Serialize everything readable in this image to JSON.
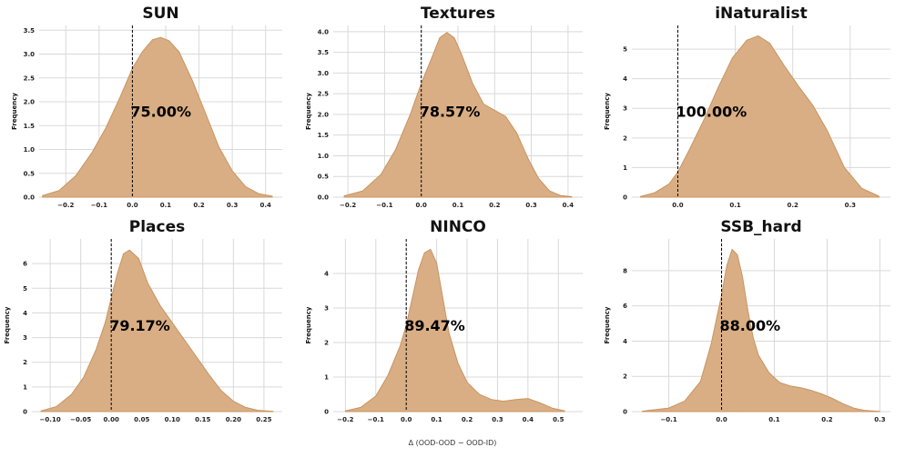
{
  "figure": {
    "xlabel": "Δ (OOD-OOD − OOD-ID)",
    "ylabel": "Frequency"
  },
  "chart_data": [
    {
      "type": "area",
      "title": "SUN",
      "ylabel": "Frequency",
      "annotation": "75.00%",
      "xlim": [
        -0.28,
        0.45
      ],
      "ylim": [
        0,
        3.6
      ],
      "xticks": [
        -0.2,
        -0.1,
        0.0,
        0.1,
        0.2,
        0.3,
        0.4
      ],
      "xtick_labels": [
        "−0.2",
        "−0.1",
        "0.0",
        "0.1",
        "0.2",
        "0.3",
        "0.4"
      ],
      "yticks": [
        0,
        0.5,
        1.0,
        1.5,
        2.0,
        2.5,
        3.0,
        3.5
      ],
      "ytick_labels": [
        "0.0",
        "0.5",
        "1.0",
        "1.5",
        "2.0",
        "2.5",
        "3.0",
        "3.5"
      ],
      "reference_line_x": 0,
      "x": [
        -0.27,
        -0.22,
        -0.17,
        -0.12,
        -0.08,
        -0.04,
        0.0,
        0.03,
        0.06,
        0.085,
        0.11,
        0.14,
        0.18,
        0.22,
        0.26,
        0.3,
        0.34,
        0.38,
        0.42
      ],
      "values": [
        0.03,
        0.14,
        0.45,
        0.95,
        1.45,
        2.05,
        2.7,
        3.05,
        3.3,
        3.35,
        3.28,
        3.05,
        2.45,
        1.75,
        1.05,
        0.55,
        0.22,
        0.07,
        0.02
      ]
    },
    {
      "type": "area",
      "title": "Textures",
      "ylabel": "Frequency",
      "annotation": "78.57%",
      "xlim": [
        -0.24,
        0.44
      ],
      "ylim": [
        0,
        4.15
      ],
      "xticks": [
        -0.2,
        -0.1,
        0.0,
        0.1,
        0.2,
        0.3,
        0.4
      ],
      "xtick_labels": [
        "−0.2",
        "−0.1",
        "0.0",
        "0.1",
        "0.2",
        "0.3",
        "0.4"
      ],
      "yticks": [
        0,
        0.5,
        1.0,
        1.5,
        2.0,
        2.5,
        3.0,
        3.5,
        4.0
      ],
      "ytick_labels": [
        "0.0",
        "0.5",
        "1.0",
        "1.5",
        "2.0",
        "2.5",
        "3.0",
        "3.5",
        "4.0"
      ],
      "reference_line_x": 0,
      "x": [
        -0.21,
        -0.16,
        -0.11,
        -0.07,
        -0.03,
        0.0,
        0.03,
        0.05,
        0.07,
        0.09,
        0.11,
        0.14,
        0.17,
        0.2,
        0.23,
        0.26,
        0.29,
        0.32,
        0.35,
        0.38,
        0.41
      ],
      "values": [
        0.03,
        0.15,
        0.55,
        1.15,
        2.0,
        2.75,
        3.4,
        3.85,
        3.98,
        3.85,
        3.45,
        2.75,
        2.25,
        2.1,
        1.95,
        1.55,
        0.95,
        0.45,
        0.15,
        0.04,
        0.01
      ]
    },
    {
      "type": "area",
      "title": "iNaturalist",
      "ylabel": "Frequency",
      "annotation": "100.00%",
      "xlim": [
        -0.08,
        0.37
      ],
      "ylim": [
        0,
        5.8
      ],
      "xticks": [
        0.0,
        0.1,
        0.2,
        0.3
      ],
      "xtick_labels": [
        "0.0",
        "0.1",
        "0.2",
        "0.3"
      ],
      "yticks": [
        0,
        1,
        2,
        3,
        4,
        5
      ],
      "ytick_labels": [
        "0",
        "1",
        "2",
        "3",
        "4",
        "5"
      ],
      "reference_line_x": 0,
      "x": [
        -0.065,
        -0.04,
        -0.015,
        0.0,
        0.02,
        0.045,
        0.07,
        0.095,
        0.12,
        0.14,
        0.16,
        0.185,
        0.21,
        0.235,
        0.26,
        0.29,
        0.32,
        0.35
      ],
      "values": [
        0.02,
        0.15,
        0.45,
        0.85,
        1.6,
        2.6,
        3.7,
        4.7,
        5.3,
        5.45,
        5.2,
        4.45,
        3.75,
        3.1,
        2.25,
        1.0,
        0.3,
        0.03
      ]
    },
    {
      "type": "area",
      "title": "Places",
      "ylabel": "Frequency",
      "annotation": "79.17%",
      "xlim": [
        -0.13,
        0.28
      ],
      "ylim": [
        0,
        7.0
      ],
      "xticks": [
        -0.1,
        -0.05,
        0.0,
        0.05,
        0.1,
        0.15,
        0.2,
        0.25
      ],
      "xtick_labels": [
        "−0.10",
        "−0.05",
        "0.00",
        "0.05",
        "0.10",
        "0.15",
        "0.20",
        "0.25"
      ],
      "yticks": [
        0,
        1,
        2,
        3,
        4,
        5,
        6
      ],
      "ytick_labels": [
        "0",
        "1",
        "2",
        "3",
        "4",
        "5",
        "6"
      ],
      "reference_line_x": 0,
      "x": [
        -0.115,
        -0.09,
        -0.065,
        -0.045,
        -0.025,
        -0.01,
        0.0,
        0.01,
        0.02,
        0.03,
        0.045,
        0.06,
        0.08,
        0.1,
        0.12,
        0.14,
        0.16,
        0.18,
        0.2,
        0.22,
        0.24,
        0.265
      ],
      "values": [
        0.03,
        0.2,
        0.7,
        1.4,
        2.5,
        3.6,
        4.6,
        5.6,
        6.4,
        6.55,
        6.2,
        5.2,
        4.3,
        3.6,
        2.9,
        2.2,
        1.5,
        0.85,
        0.42,
        0.17,
        0.05,
        0.01
      ]
    },
    {
      "type": "area",
      "title": "NINCO",
      "ylabel": "Frequency",
      "annotation": "89.47%",
      "xlim": [
        -0.24,
        0.58
      ],
      "ylim": [
        0,
        5.0
      ],
      "xticks": [
        -0.2,
        -0.1,
        0.0,
        0.1,
        0.2,
        0.3,
        0.4,
        0.5
      ],
      "xtick_labels": [
        "−0.2",
        "−0.1",
        "0.0",
        "0.1",
        "0.2",
        "0.3",
        "0.4",
        "0.5"
      ],
      "yticks": [
        0,
        1,
        2,
        3,
        4
      ],
      "ytick_labels": [
        "0",
        "1",
        "2",
        "3",
        "4"
      ],
      "reference_line_x": 0,
      "x": [
        -0.2,
        -0.15,
        -0.1,
        -0.06,
        -0.02,
        0.0,
        0.02,
        0.04,
        0.06,
        0.08,
        0.1,
        0.12,
        0.14,
        0.17,
        0.2,
        0.24,
        0.28,
        0.32,
        0.36,
        0.4,
        0.44,
        0.48,
        0.52
      ],
      "values": [
        0.02,
        0.12,
        0.45,
        1.05,
        1.9,
        2.5,
        3.3,
        4.1,
        4.6,
        4.7,
        4.3,
        3.3,
        2.3,
        1.4,
        0.85,
        0.5,
        0.35,
        0.3,
        0.35,
        0.38,
        0.25,
        0.1,
        0.02
      ]
    },
    {
      "type": "area",
      "title": "SSB_hard",
      "ylabel": "Frequency",
      "annotation": "88.00%",
      "xlim": [
        -0.17,
        0.32
      ],
      "ylim": [
        0,
        9.8
      ],
      "xticks": [
        -0.1,
        0.0,
        0.1,
        0.2,
        0.3
      ],
      "xtick_labels": [
        "−0.1",
        "0.0",
        "0.1",
        "0.2",
        "0.3"
      ],
      "yticks": [
        0,
        2,
        4,
        6,
        8
      ],
      "ytick_labels": [
        "0",
        "2",
        "4",
        "6",
        "8"
      ],
      "reference_line_x": 0,
      "x": [
        -0.15,
        -0.1,
        -0.07,
        -0.04,
        -0.02,
        0.0,
        0.01,
        0.02,
        0.03,
        0.04,
        0.05,
        0.06,
        0.07,
        0.09,
        0.11,
        0.13,
        0.15,
        0.17,
        0.19,
        0.21,
        0.23,
        0.25,
        0.27,
        0.3
      ],
      "values": [
        0.02,
        0.2,
        0.6,
        1.7,
        3.8,
        6.6,
        8.3,
        9.2,
        8.9,
        7.6,
        5.7,
        4.2,
        3.2,
        2.2,
        1.65,
        1.45,
        1.35,
        1.2,
        1.0,
        0.75,
        0.45,
        0.2,
        0.07,
        0.01
      ]
    }
  ]
}
